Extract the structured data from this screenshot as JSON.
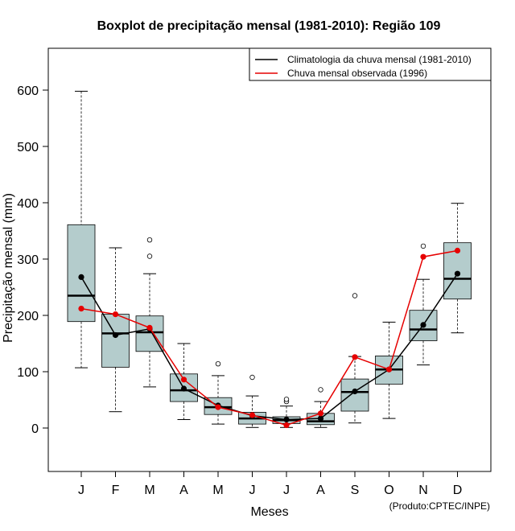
{
  "chart_data": {
    "type": "boxplot",
    "title": "Boxplot de precipitação mensal (1981-2010): Região 109",
    "xlabel": "Meses",
    "ylabel": "Precipitação mensal (mm)",
    "credit": "(Produto:CPTEC/INPE)",
    "ylim": [
      -75,
      675
    ],
    "yticks": [
      0,
      100,
      200,
      300,
      400,
      500,
      600
    ],
    "categories": [
      "J",
      "F",
      "M",
      "A",
      "M",
      "J",
      "J",
      "A",
      "S",
      "O",
      "N",
      "D"
    ],
    "boxes": [
      {
        "whisker_low": 107,
        "q1": 189,
        "median": 235,
        "q3": 361,
        "whisker_high": 598,
        "outliers": []
      },
      {
        "whisker_low": 29,
        "q1": 108,
        "median": 168,
        "q3": 202,
        "whisker_high": 320,
        "outliers": []
      },
      {
        "whisker_low": 73,
        "q1": 136,
        "median": 170,
        "q3": 199,
        "whisker_high": 274,
        "outliers": [
          305,
          334
        ]
      },
      {
        "whisker_low": 15,
        "q1": 47,
        "median": 67,
        "q3": 96,
        "whisker_high": 150,
        "outliers": []
      },
      {
        "whisker_low": 7,
        "q1": 24,
        "median": 37,
        "q3": 54,
        "whisker_high": 93,
        "outliers": [
          114
        ]
      },
      {
        "whisker_low": 1,
        "q1": 7,
        "median": 17,
        "q3": 28,
        "whisker_high": 57,
        "outliers": [
          90
        ]
      },
      {
        "whisker_low": 1,
        "q1": 8,
        "median": 14,
        "q3": 20,
        "whisker_high": 39,
        "outliers": [
          47,
          51
        ]
      },
      {
        "whisker_low": 1,
        "q1": 6,
        "median": 12,
        "q3": 26,
        "whisker_high": 47,
        "outliers": [
          68
        ]
      },
      {
        "whisker_low": 9,
        "q1": 30,
        "median": 64,
        "q3": 87,
        "whisker_high": 127,
        "outliers": [
          235
        ]
      },
      {
        "whisker_low": 17,
        "q1": 78,
        "median": 104,
        "q3": 128,
        "whisker_high": 188,
        "outliers": []
      },
      {
        "whisker_low": 112,
        "q1": 155,
        "median": 175,
        "q3": 209,
        "whisker_high": 264,
        "outliers": [
          323
        ]
      },
      {
        "whisker_low": 169,
        "q1": 229,
        "median": 265,
        "q3": 329,
        "whisker_high": 399,
        "outliers": []
      }
    ],
    "series": [
      {
        "name": "Climatologia da chuva mensal (1981-2010)",
        "color": "#000000",
        "values": [
          268,
          165,
          176,
          70,
          40,
          22,
          15,
          17,
          65,
          104,
          183,
          274
        ]
      },
      {
        "name": "Chuva mensal observada (1996)",
        "color": "#e60000",
        "values": [
          212,
          202,
          178,
          86,
          37,
          23,
          5,
          26,
          126,
          104,
          304,
          315
        ]
      }
    ],
    "box_fill": "#b4cccc",
    "legend_position": "top-right",
    "grid": false
  }
}
